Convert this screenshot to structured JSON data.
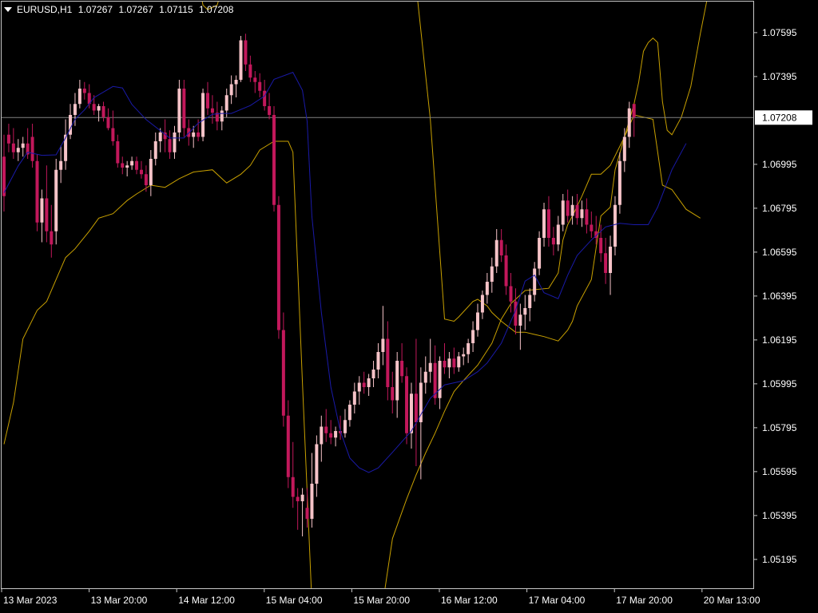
{
  "header": {
    "symbol_timeframe": "EURUSD,H1",
    "open": "1.07267",
    "high": "1.07267",
    "low": "1.07115",
    "close": "1.07208"
  },
  "colors": {
    "background": "#000000",
    "frame": "#c8c8c8",
    "text": "#ffffff",
    "bull_candle": "#f6c3c8",
    "bear_candle": "#c2185b",
    "middle_band": "#1a1aa8",
    "outer_bands": "#c8a000",
    "price_line": "#808080",
    "price_label_bg": "#ffffff",
    "price_label_text": "#000000"
  },
  "chart_data": {
    "type": "candlestick",
    "symbol": "EURUSD",
    "timeframe": "H1",
    "y_ticks": [
      "1.07595",
      "1.07395",
      "1.06995",
      "1.06795",
      "1.06595",
      "1.06395",
      "1.06195",
      "1.05995",
      "1.05795",
      "1.05595",
      "1.05395",
      "1.05195"
    ],
    "x_ticks": [
      "13 Mar 2023",
      "13 Mar 20:00",
      "14 Mar 12:00",
      "15 Mar 04:00",
      "15 Mar 20:00",
      "16 Mar 12:00",
      "17 Mar 04:00",
      "17 Mar 20:00",
      "20 Mar 13:00"
    ],
    "ylim": [
      1.0506,
      1.0774
    ],
    "current_price": "1.07208",
    "candles": [
      [
        1.0703,
        1.0713,
        1.0678,
        1.0685
      ],
      [
        1.0713,
        1.0718,
        1.0705,
        1.0709
      ],
      [
        1.0709,
        1.0716,
        1.0702,
        1.0705
      ],
      [
        1.0705,
        1.0711,
        1.0701,
        1.0707
      ],
      [
        1.0707,
        1.0712,
        1.0703,
        1.0709
      ],
      [
        1.0709,
        1.0716,
        1.0702,
        1.0704
      ],
      [
        1.0712,
        1.0718,
        1.0698,
        1.0701
      ],
      [
        1.0701,
        1.0704,
        1.0669,
        1.0673
      ],
      [
        1.0673,
        1.0688,
        1.0664,
        1.0684
      ],
      [
        1.0684,
        1.0699,
        1.0664,
        1.0669
      ],
      [
        1.0669,
        1.0681,
        1.0657,
        1.0663
      ],
      [
        1.0669,
        1.0702,
        1.0663,
        1.0697
      ],
      [
        1.0697,
        1.0708,
        1.0691,
        1.0701
      ],
      [
        1.0701,
        1.072,
        1.0697,
        1.0713
      ],
      [
        1.0713,
        1.0727,
        1.0711,
        1.0722
      ],
      [
        1.0722,
        1.0732,
        1.0717,
        1.0727
      ],
      [
        1.0727,
        1.0738,
        1.0725,
        1.0734
      ],
      [
        1.0734,
        1.0737,
        1.0729,
        1.0732
      ],
      [
        1.0732,
        1.0736,
        1.0725,
        1.0727
      ],
      [
        1.0727,
        1.0731,
        1.0722,
        1.0724
      ],
      [
        1.0724,
        1.0727,
        1.0719,
        1.0726
      ],
      [
        1.0726,
        1.0728,
        1.0719,
        1.0721
      ],
      [
        1.0721,
        1.0725,
        1.0715,
        1.0716
      ],
      [
        1.0716,
        1.0724,
        1.0708,
        1.071
      ],
      [
        1.071,
        1.0713,
        1.0698,
        1.07
      ],
      [
        1.07,
        1.0703,
        1.0695,
        1.0698
      ],
      [
        1.0698,
        1.0701,
        1.0694,
        1.0699
      ],
      [
        1.0699,
        1.0703,
        1.0697,
        1.0701
      ],
      [
        1.0701,
        1.0703,
        1.0695,
        1.0697
      ],
      [
        1.0697,
        1.0701,
        1.0693,
        1.0695
      ],
      [
        1.0695,
        1.0699,
        1.0687,
        1.069
      ],
      [
        1.069,
        1.0706,
        1.0685,
        1.0702
      ],
      [
        1.0702,
        1.0714,
        1.0699,
        1.071
      ],
      [
        1.071,
        1.0716,
        1.0705,
        1.0714
      ],
      [
        1.0714,
        1.072,
        1.0705,
        1.0711
      ],
      [
        1.0711,
        1.0715,
        1.0702,
        1.0705
      ],
      [
        1.0705,
        1.0717,
        1.0702,
        1.0714
      ],
      [
        1.0714,
        1.0738,
        1.071,
        1.0734
      ],
      [
        1.0734,
        1.0738,
        1.0712,
        1.0716
      ],
      [
        1.0716,
        1.072,
        1.0708,
        1.0712
      ],
      [
        1.0712,
        1.0717,
        1.0707,
        1.0714
      ],
      [
        1.0714,
        1.072,
        1.071,
        1.0712
      ],
      [
        1.0712,
        1.0734,
        1.071,
        1.0732
      ],
      [
        1.0732,
        1.0737,
        1.0722,
        1.0725
      ],
      [
        1.0725,
        1.0731,
        1.0718,
        1.0723
      ],
      [
        1.0723,
        1.0728,
        1.0715,
        1.0719
      ],
      [
        1.0719,
        1.0726,
        1.0715,
        1.0724
      ],
      [
        1.0724,
        1.0734,
        1.0721,
        1.0731
      ],
      [
        1.0731,
        1.074,
        1.0727,
        1.0736
      ],
      [
        1.0736,
        1.074,
        1.073,
        1.0738
      ],
      [
        1.0738,
        1.0758,
        1.0737,
        1.0756
      ],
      [
        1.0756,
        1.0759,
        1.0742,
        1.0745
      ],
      [
        1.0745,
        1.0749,
        1.0737,
        1.0739
      ],
      [
        1.0739,
        1.0742,
        1.0732,
        1.0737
      ],
      [
        1.0737,
        1.0741,
        1.073,
        1.0733
      ],
      [
        1.0733,
        1.0738,
        1.0724,
        1.0726
      ],
      [
        1.0726,
        1.0732,
        1.072,
        1.0722
      ],
      [
        1.0722,
        1.0726,
        1.0678,
        1.0681
      ],
      [
        1.0681,
        1.0685,
        1.062,
        1.0624
      ],
      [
        1.0624,
        1.0632,
        1.058,
        1.0585
      ],
      [
        1.0585,
        1.0592,
        1.0552,
        1.0557
      ],
      [
        1.0557,
        1.0573,
        1.0543,
        1.0548
      ],
      [
        1.0548,
        1.0552,
        1.0533,
        1.0546
      ],
      [
        1.0546,
        1.0552,
        1.053,
        1.0549
      ],
      [
        1.0543,
        1.0552,
        1.0534,
        1.0538
      ],
      [
        1.0538,
        1.0568,
        1.0534,
        1.0554
      ],
      [
        1.0554,
        1.0576,
        1.0548,
        1.0572
      ],
      [
        1.0572,
        1.0585,
        1.0564,
        1.058
      ],
      [
        1.058,
        1.0588,
        1.0573,
        1.0577
      ],
      [
        1.0577,
        1.0583,
        1.0572,
        1.0575
      ],
      [
        1.0575,
        1.058,
        1.0571,
        1.0578
      ],
      [
        1.0578,
        1.0585,
        1.0574,
        1.0577
      ],
      [
        1.0577,
        1.0588,
        1.0575,
        1.0583
      ],
      [
        1.0583,
        1.0592,
        1.058,
        1.059
      ],
      [
        1.059,
        1.06,
        1.0586,
        1.0596
      ],
      [
        1.0596,
        1.0603,
        1.059,
        1.06
      ],
      [
        1.06,
        1.0605,
        1.0595,
        1.0598
      ],
      [
        1.0598,
        1.0604,
        1.0594,
        1.0602
      ],
      [
        1.0602,
        1.061,
        1.0598,
        1.0606
      ],
      [
        1.0606,
        1.0618,
        1.0602,
        1.0614
      ],
      [
        1.0614,
        1.0635,
        1.0608,
        1.062
      ],
      [
        1.062,
        1.0628,
        1.0592,
        1.0598
      ],
      [
        1.0598,
        1.0605,
        1.0586,
        1.0592
      ],
      [
        1.0592,
        1.0614,
        1.0584,
        1.061
      ],
      [
        1.061,
        1.0618,
        1.06,
        1.0603
      ],
      [
        1.0603,
        1.0607,
        1.0572,
        1.0577
      ],
      [
        1.0577,
        1.06,
        1.057,
        1.0595
      ],
      [
        1.0595,
        1.062,
        1.0562,
        1.0582
      ],
      [
        1.0582,
        1.0607,
        1.0556,
        1.06
      ],
      [
        1.06,
        1.0612,
        1.0595,
        1.0605
      ],
      [
        1.0605,
        1.062,
        1.06,
        1.0609
      ],
      [
        1.0609,
        1.0617,
        1.059,
        1.0593
      ],
      [
        1.0593,
        1.0612,
        1.0588,
        1.061
      ],
      [
        1.061,
        1.0618,
        1.0604,
        1.0607
      ],
      [
        1.0607,
        1.0614,
        1.0602,
        1.0611
      ],
      [
        1.0611,
        1.0616,
        1.0604,
        1.0607
      ],
      [
        1.0607,
        1.0614,
        1.0605,
        1.0612
      ],
      [
        1.0612,
        1.0616,
        1.0608,
        1.0613
      ],
      [
        1.0613,
        1.062,
        1.0609,
        1.0618
      ],
      [
        1.0618,
        1.0628,
        1.0614,
        1.0624
      ],
      [
        1.0624,
        1.0636,
        1.0621,
        1.0632
      ],
      [
        1.0632,
        1.0642,
        1.0629,
        1.064
      ],
      [
        1.064,
        1.065,
        1.0636,
        1.0646
      ],
      [
        1.0646,
        1.0657,
        1.0641,
        1.0653
      ],
      [
        1.0653,
        1.067,
        1.065,
        1.0665
      ],
      [
        1.0665,
        1.067,
        1.0655,
        1.0658
      ],
      [
        1.0658,
        1.0663,
        1.064,
        1.0644
      ],
      [
        1.0644,
        1.065,
        1.0632,
        1.0637
      ],
      [
        1.0637,
        1.0643,
        1.0622,
        1.0626
      ],
      [
        1.0626,
        1.0636,
        1.0615,
        1.0631
      ],
      [
        1.0631,
        1.064,
        1.0624,
        1.0634
      ],
      [
        1.0634,
        1.0643,
        1.0628,
        1.064
      ],
      [
        1.064,
        1.0655,
        1.0637,
        1.0652
      ],
      [
        1.0652,
        1.0669,
        1.0649,
        1.0666
      ],
      [
        1.0666,
        1.0682,
        1.0662,
        1.0679
      ],
      [
        1.0679,
        1.0685,
        1.0662,
        1.0666
      ],
      [
        1.0666,
        1.0671,
        1.0658,
        1.0663
      ],
      [
        1.0663,
        1.0676,
        1.066,
        1.0672
      ],
      [
        1.0672,
        1.0686,
        1.0669,
        1.0683
      ],
      [
        1.0683,
        1.0688,
        1.0673,
        1.0676
      ],
      [
        1.0676,
        1.0685,
        1.0672,
        1.0681
      ],
      [
        1.0681,
        1.0686,
        1.0672,
        1.0675
      ],
      [
        1.0675,
        1.0683,
        1.0671,
        1.0679
      ],
      [
        1.0679,
        1.0684,
        1.0668,
        1.0672
      ],
      [
        1.0672,
        1.0678,
        1.0666,
        1.0669
      ],
      [
        1.0669,
        1.0676,
        1.0663,
        1.0666
      ],
      [
        1.0666,
        1.0672,
        1.0655,
        1.0659
      ],
      [
        1.0659,
        1.0666,
        1.0645,
        1.065
      ],
      [
        1.065,
        1.0667,
        1.064,
        1.0662
      ],
      [
        1.0662,
        1.0685,
        1.0658,
        1.0681
      ],
      [
        1.0681,
        1.0705,
        1.0677,
        1.0701
      ],
      [
        1.0701,
        1.0716,
        1.0696,
        1.0712
      ],
      [
        1.0712,
        1.0728,
        1.0707,
        1.0725
      ],
      [
        1.0727,
        1.0727,
        1.0712,
        1.0721
      ]
    ],
    "middle_band": [
      [
        0,
        1.06865
      ],
      [
        3,
        1.06988
      ],
      [
        5,
        1.0705
      ],
      [
        8,
        1.07036
      ],
      [
        11,
        1.07038
      ],
      [
        13,
        1.07116
      ],
      [
        15,
        1.072
      ],
      [
        17,
        1.07243
      ],
      [
        19,
        1.07299
      ],
      [
        23,
        1.0735
      ],
      [
        25,
        1.07343
      ],
      [
        27,
        1.07268
      ],
      [
        30,
        1.07199
      ],
      [
        35,
        1.07115
      ],
      [
        38,
        1.07115
      ],
      [
        41,
        1.07182
      ],
      [
        44,
        1.07223
      ],
      [
        46,
        1.07227
      ],
      [
        48,
        1.07227
      ],
      [
        52,
        1.07263
      ],
      [
        55,
        1.07306
      ],
      [
        57,
        1.07382
      ],
      [
        61,
        1.07414
      ],
      [
        63,
        1.07332
      ],
      [
        64,
        1.0719
      ],
      [
        65,
        1.0676
      ],
      [
        67,
        1.0632
      ],
      [
        69,
        1.0598
      ],
      [
        71,
        1.0578
      ],
      [
        73,
        1.05657
      ],
      [
        75,
        1.05612
      ],
      [
        77,
        1.05591
      ],
      [
        79,
        1.05612
      ],
      [
        82,
        1.05683
      ],
      [
        86,
        1.0578
      ],
      [
        90,
        1.05929
      ],
      [
        93,
        1.0599
      ],
      [
        97,
        1.06009
      ],
      [
        100,
        1.0605
      ],
      [
        102,
        1.0609
      ],
      [
        105,
        1.0618
      ],
      [
        108,
        1.0633
      ],
      [
        110,
        1.06463
      ],
      [
        112,
        1.0649
      ],
      [
        114,
        1.0641
      ],
      [
        117,
        1.06383
      ],
      [
        119,
        1.0649
      ],
      [
        121,
        1.0658
      ],
      [
        124,
        1.0665
      ],
      [
        127,
        1.0671
      ],
      [
        130,
        1.06726
      ],
      [
        133,
        1.0672
      ],
      [
        136,
        1.0672
      ],
      [
        138,
        1.068
      ],
      [
        141,
        1.0697
      ],
      [
        144,
        1.0709
      ]
    ],
    "upper_band": [
      [
        40,
        1.0792
      ],
      [
        41,
        1.0783
      ],
      [
        42,
        1.0772
      ],
      [
        43,
        1.077
      ],
      [
        45,
        1.0772
      ],
      [
        46,
        1.0779
      ],
      [
        49,
        1.0779
      ],
      [
        51,
        1.0792
      ],
      [
        52,
        1.0788
      ],
      [
        53,
        1.0783
      ],
      [
        55,
        1.0783
      ],
      [
        57,
        1.0796
      ],
      [
        63,
        1.0796
      ],
      [
        64,
        1.0801
      ],
      [
        86,
        1.0801
      ],
      [
        90,
        1.072
      ],
      [
        93,
        1.0629
      ],
      [
        95,
        1.0628
      ],
      [
        96,
        1.063
      ],
      [
        99,
        1.0637
      ],
      [
        100,
        1.0638
      ],
      [
        102,
        1.0635
      ],
      [
        103,
        1.0632
      ],
      [
        105,
        1.0628
      ],
      [
        108,
        1.0623
      ],
      [
        110,
        1.0623
      ],
      [
        112,
        1.0622
      ],
      [
        114,
        1.0621
      ],
      [
        117,
        1.0619
      ],
      [
        119,
        1.0624
      ],
      [
        120,
        1.0628
      ],
      [
        121,
        1.0635
      ],
      [
        124,
        1.0647
      ],
      [
        126,
        1.0676
      ],
      [
        128,
        1.068
      ],
      [
        129,
        1.0697
      ],
      [
        131,
        1.0712
      ],
      [
        133,
        1.0727
      ],
      [
        134,
        1.0737
      ],
      [
        135,
        1.0751
      ],
      [
        136,
        1.0755
      ],
      [
        137,
        1.0757
      ],
      [
        138,
        1.0755
      ],
      [
        139,
        1.0728
      ],
      [
        140,
        1.0715
      ],
      [
        141,
        1.0713
      ],
      [
        143,
        1.0721
      ],
      [
        145,
        1.0735
      ],
      [
        147,
        1.0759
      ],
      [
        149,
        1.0781
      ],
      [
        150,
        1.0792
      ]
    ],
    "lower_band": [
      [
        0,
        1.0572
      ],
      [
        2,
        1.0591
      ],
      [
        4,
        1.062
      ],
      [
        7,
        1.0633
      ],
      [
        9,
        1.0637
      ],
      [
        11,
        1.0647
      ],
      [
        13,
        1.0657
      ],
      [
        15,
        1.0661
      ],
      [
        18,
        1.0669
      ],
      [
        20,
        1.0675
      ],
      [
        23,
        1.0677
      ],
      [
        26,
        1.0683
      ],
      [
        28,
        1.0686
      ],
      [
        31,
        1.069
      ],
      [
        34,
        1.0689
      ],
      [
        37,
        1.0693
      ],
      [
        40,
        1.0696
      ],
      [
        44,
        1.0697
      ],
      [
        47,
        1.0691
      ],
      [
        50,
        1.0695
      ],
      [
        52,
        1.0699
      ],
      [
        54,
        1.0706
      ],
      [
        57,
        1.071
      ],
      [
        60,
        1.071
      ],
      [
        61,
        1.0705
      ],
      [
        63,
        1.06
      ],
      [
        65,
        1.05
      ],
      [
        66,
        1.05
      ],
      [
        80,
        1.05
      ],
      [
        82,
        1.0529
      ],
      [
        84,
        1.0541
      ],
      [
        85,
        1.0547
      ],
      [
        87,
        1.0558
      ],
      [
        89,
        1.0568
      ],
      [
        91,
        1.0577
      ],
      [
        93,
        1.0587
      ],
      [
        95,
        1.0596
      ],
      [
        97,
        1.0601
      ],
      [
        100,
        1.0608
      ],
      [
        103,
        1.0618
      ],
      [
        105,
        1.0629
      ],
      [
        107,
        1.0636
      ],
      [
        110,
        1.0642
      ],
      [
        115,
        1.0643
      ],
      [
        117,
        1.065
      ],
      [
        118,
        1.0665
      ],
      [
        119,
        1.0672
      ],
      [
        120,
        1.0676
      ],
      [
        122,
        1.0685
      ],
      [
        124,
        1.0695
      ],
      [
        126,
        1.0695
      ],
      [
        128,
        1.0699
      ],
      [
        131,
        1.0712
      ],
      [
        133,
        1.0722
      ],
      [
        135,
        1.0721
      ],
      [
        137,
        1.072
      ],
      [
        139,
        1.069
      ],
      [
        141,
        1.0688
      ],
      [
        144,
        1.0679
      ],
      [
        147,
        1.0675
      ]
    ]
  }
}
